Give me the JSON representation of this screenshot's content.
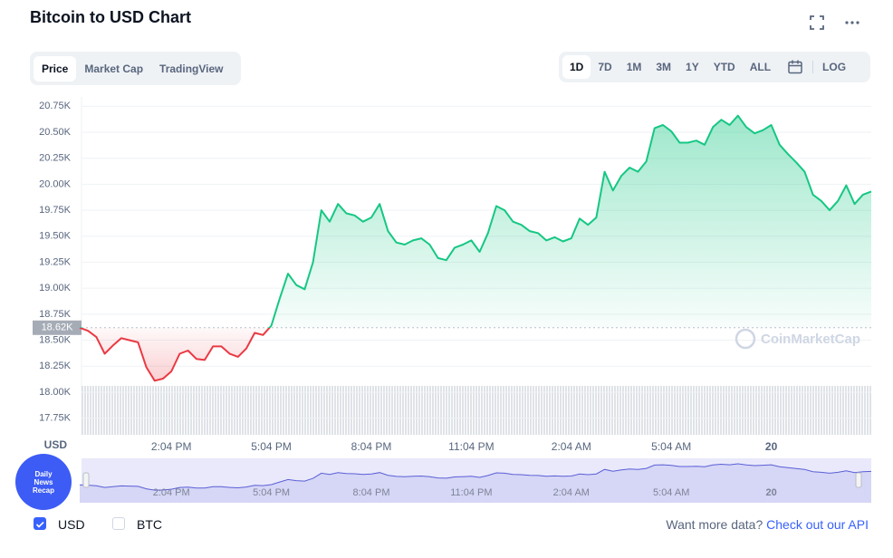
{
  "header": {
    "title": "Bitcoin to USD Chart",
    "tabs": [
      "Price",
      "Market Cap",
      "TradingView"
    ],
    "ranges": [
      "1D",
      "7D",
      "1M",
      "3M",
      "1Y",
      "YTD",
      "ALL"
    ],
    "log": "LOG"
  },
  "chart_data": {
    "type": "line",
    "categories": [
      null,
      null,
      null,
      null,
      null,
      null,
      null,
      null,
      null,
      null,
      null,
      "2:04 PM",
      null,
      null,
      null,
      null,
      null,
      null,
      null,
      null,
      null,
      null,
      null,
      "5:04 PM",
      null,
      null,
      null,
      null,
      null,
      null,
      null,
      null,
      null,
      null,
      null,
      "8:04 PM",
      null,
      null,
      null,
      null,
      null,
      null,
      null,
      null,
      null,
      null,
      null,
      "11:04 PM",
      null,
      null,
      null,
      null,
      null,
      null,
      null,
      null,
      null,
      null,
      null,
      "2:04 AM",
      null,
      null,
      null,
      null,
      null,
      null,
      null,
      null,
      null,
      null,
      null,
      "5:04 AM",
      null,
      null,
      null,
      null,
      null,
      null,
      null,
      null,
      null,
      null,
      null,
      "20",
      null,
      null,
      null,
      null,
      null,
      null,
      null,
      null,
      null,
      null,
      null,
      null
    ],
    "values": [
      18620,
      18590,
      18530,
      18370,
      18450,
      18520,
      18500,
      18480,
      18240,
      18110,
      18130,
      18200,
      18370,
      18400,
      18320,
      18310,
      18440,
      18440,
      18370,
      18340,
      18420,
      18570,
      18550,
      18640,
      18900,
      19140,
      19030,
      18990,
      19250,
      19750,
      19640,
      19810,
      19720,
      19700,
      19640,
      19680,
      19810,
      19550,
      19440,
      19420,
      19460,
      19480,
      19420,
      19290,
      19270,
      19390,
      19420,
      19460,
      19350,
      19530,
      19790,
      19750,
      19640,
      19610,
      19550,
      19530,
      19460,
      19490,
      19450,
      19480,
      19670,
      19610,
      19680,
      20120,
      19940,
      20080,
      20160,
      20120,
      20220,
      20540,
      20570,
      20510,
      20400,
      20400,
      20420,
      20380,
      20550,
      20620,
      20570,
      20660,
      20550,
      20490,
      20520,
      20570,
      20380,
      20290,
      20210,
      20120,
      19900,
      19840,
      19750,
      19840,
      19990,
      19810,
      19900,
      19930
    ],
    "up_color": "#16c784",
    "down_color": "#ea3943",
    "reference": {
      "value": 18620,
      "label": "18.62K"
    },
    "ylim": [
      17590,
      20840
    ],
    "yticks": [
      {
        "value": 17750,
        "label": "17.75K"
      },
      {
        "value": 18000,
        "label": "18.00K"
      },
      {
        "value": 18250,
        "label": "18.25K"
      },
      {
        "value": 18500,
        "label": "18.50K"
      },
      {
        "value": 18750,
        "label": "18.75K"
      },
      {
        "value": 19000,
        "label": "19.00K"
      },
      {
        "value": 19250,
        "label": "19.25K"
      },
      {
        "value": 19500,
        "label": "19.50K"
      },
      {
        "value": 19750,
        "label": "19.75K"
      },
      {
        "value": 20000,
        "label": "20.00K"
      },
      {
        "value": 20250,
        "label": "20.25K"
      },
      {
        "value": 20500,
        "label": "20.50K"
      },
      {
        "value": 20750,
        "label": "20.75K"
      }
    ],
    "y_label": "USD",
    "grid": true,
    "watermark": "CoinMarketCap",
    "navigator_color": "#5b5fd6"
  },
  "footer": {
    "options": [
      "USD",
      "BTC"
    ],
    "prompt": "Want more data?",
    "link": "Check out our API"
  },
  "badge": {
    "lines": [
      "Daily",
      "News",
      "Recap"
    ]
  }
}
